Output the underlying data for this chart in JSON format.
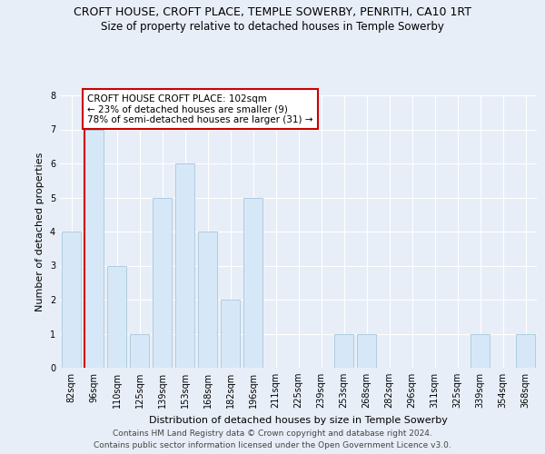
{
  "title": "CROFT HOUSE, CROFT PLACE, TEMPLE SOWERBY, PENRITH, CA10 1RT",
  "subtitle": "Size of property relative to detached houses in Temple Sowerby",
  "xlabel": "Distribution of detached houses by size in Temple Sowerby",
  "ylabel": "Number of detached properties",
  "categories": [
    "82sqm",
    "96sqm",
    "110sqm",
    "125sqm",
    "139sqm",
    "153sqm",
    "168sqm",
    "182sqm",
    "196sqm",
    "211sqm",
    "225sqm",
    "239sqm",
    "253sqm",
    "268sqm",
    "282sqm",
    "296sqm",
    "311sqm",
    "325sqm",
    "339sqm",
    "354sqm",
    "368sqm"
  ],
  "values": [
    4,
    7,
    3,
    1,
    5,
    6,
    4,
    2,
    5,
    0,
    0,
    0,
    1,
    1,
    0,
    0,
    0,
    0,
    1,
    0,
    1
  ],
  "bar_color": "#d6e8f7",
  "bar_edge_color": "#b0ccdf",
  "marker_color": "#cc0000",
  "annotation_text": "CROFT HOUSE CROFT PLACE: 102sqm\n← 23% of detached houses are smaller (9)\n78% of semi-detached houses are larger (31) →",
  "annotation_box_color": "#ffffff",
  "annotation_box_edge_color": "#cc0000",
  "ylim": [
    0,
    8
  ],
  "yticks": [
    0,
    1,
    2,
    3,
    4,
    5,
    6,
    7,
    8
  ],
  "footer_line1": "Contains HM Land Registry data © Crown copyright and database right 2024.",
  "footer_line2": "Contains public sector information licensed under the Open Government Licence v3.0.",
  "bg_color": "#e8eef8",
  "title_fontsize": 9,
  "subtitle_fontsize": 8.5,
  "xlabel_fontsize": 8,
  "ylabel_fontsize": 8,
  "tick_fontsize": 7,
  "annotation_fontsize": 7.5,
  "footer_fontsize": 6.5
}
